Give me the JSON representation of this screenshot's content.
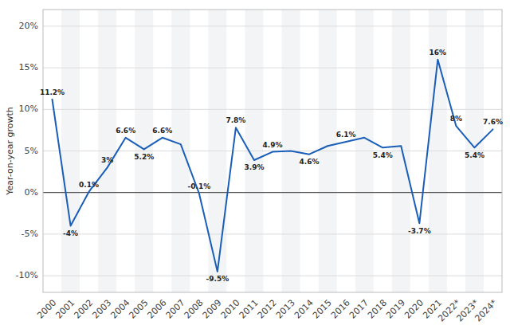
{
  "chart_data": {
    "type": "line",
    "ylabel": "Year-on-year growth",
    "categories": [
      "2000",
      "2001",
      "2002",
      "2003",
      "2004",
      "2005",
      "2006",
      "2007",
      "2008",
      "2009",
      "2010",
      "2011",
      "2012",
      "2013",
      "2014",
      "2015",
      "2016",
      "2017",
      "2018",
      "2019",
      "2020",
      "2021",
      "2022*",
      "2023*",
      "2024*"
    ],
    "values": [
      11.2,
      -4.0,
      0.1,
      3.0,
      6.6,
      5.2,
      6.6,
      5.8,
      -0.1,
      -9.5,
      7.8,
      3.9,
      4.9,
      5.0,
      4.6,
      5.6,
      6.1,
      6.6,
      5.4,
      5.6,
      -3.7,
      16.0,
      8.0,
      5.4,
      7.6
    ],
    "value_labels": [
      "11.2%",
      "-4%",
      "0.1%",
      "3%",
      "6.6%",
      "5.2%",
      "6.6%",
      null,
      "-0.1%",
      "-9.5%",
      "7.8%",
      "3.9%",
      "4.9%",
      null,
      "4.6%",
      null,
      "6.1%",
      null,
      "5.4%",
      null,
      "-3.7%",
      "16%",
      "8%",
      "5.4%",
      "7.6%"
    ],
    "data_labels": true,
    "color": "#1a5eb8",
    "ylim": [
      -12,
      22
    ],
    "yticks": [
      {
        "value": -10,
        "label": "-10%"
      },
      {
        "value": -5,
        "label": "-5%"
      },
      {
        "value": 0,
        "label": "0%"
      },
      {
        "value": 5,
        "label": "5%"
      },
      {
        "value": 10,
        "label": "10%"
      },
      {
        "value": 15,
        "label": "15%"
      },
      {
        "value": 20,
        "label": "20%"
      }
    ],
    "grid": true
  }
}
